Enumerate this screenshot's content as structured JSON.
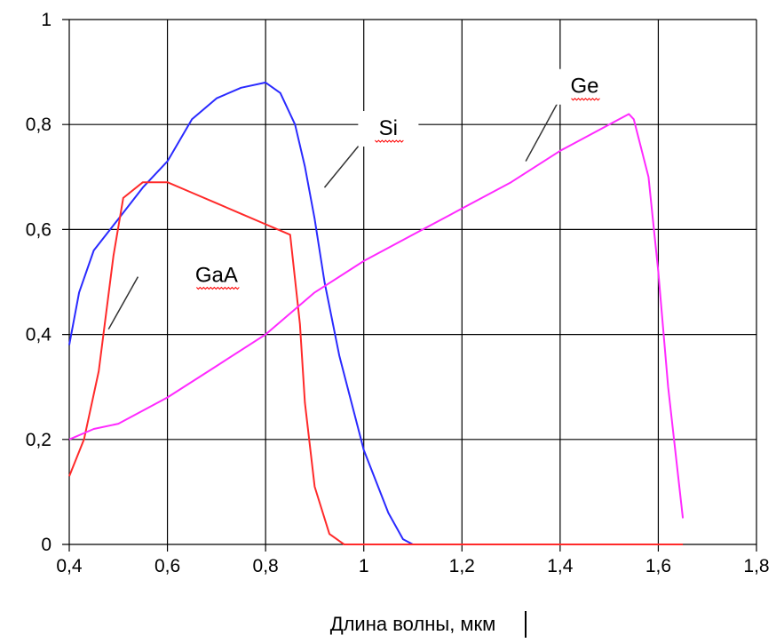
{
  "chart_data": {
    "type": "line",
    "xlabel": "Длина волны, мкм",
    "ylabel": "",
    "xlim": [
      0.4,
      1.8
    ],
    "ylim": [
      0,
      1
    ],
    "grid": true,
    "x_ticks": [
      "0,4",
      "0,6",
      "0,8",
      "1",
      "1,2",
      "1,4",
      "1,6",
      "1,8"
    ],
    "y_ticks": [
      "0",
      "0,2",
      "0,4",
      "0,6",
      "0,8",
      "1"
    ],
    "series": [
      {
        "name": "Si",
        "color": "#2a2aff",
        "x": [
          0.4,
          0.42,
          0.45,
          0.5,
          0.55,
          0.6,
          0.65,
          0.7,
          0.75,
          0.8,
          0.83,
          0.86,
          0.88,
          0.9,
          0.92,
          0.95,
          1.0,
          1.05,
          1.08,
          1.1,
          1.13
        ],
        "y": [
          0.38,
          0.48,
          0.56,
          0.62,
          0.68,
          0.73,
          0.81,
          0.85,
          0.87,
          0.88,
          0.86,
          0.8,
          0.72,
          0.62,
          0.5,
          0.36,
          0.18,
          0.06,
          0.01,
          0.0,
          0.0
        ]
      },
      {
        "name": "GaA",
        "color": "#ff2a2a",
        "x": [
          0.4,
          0.43,
          0.46,
          0.49,
          0.51,
          0.55,
          0.6,
          0.65,
          0.7,
          0.75,
          0.8,
          0.85,
          0.87,
          0.88,
          0.9,
          0.93,
          0.96,
          0.98,
          1.0,
          1.2,
          1.4,
          1.65
        ],
        "y": [
          0.13,
          0.2,
          0.33,
          0.55,
          0.66,
          0.69,
          0.69,
          0.67,
          0.65,
          0.63,
          0.61,
          0.59,
          0.42,
          0.27,
          0.11,
          0.02,
          0.0,
          0.0,
          0.0,
          0.0,
          0.0,
          0.0
        ]
      },
      {
        "name": "Ge",
        "color": "#ff2aff",
        "x": [
          0.4,
          0.45,
          0.5,
          0.6,
          0.7,
          0.8,
          0.9,
          1.0,
          1.1,
          1.2,
          1.3,
          1.4,
          1.5,
          1.54,
          1.55,
          1.58,
          1.6,
          1.62,
          1.65
        ],
        "y": [
          0.2,
          0.22,
          0.23,
          0.28,
          0.34,
          0.4,
          0.48,
          0.54,
          0.59,
          0.64,
          0.69,
          0.75,
          0.8,
          0.82,
          0.81,
          0.7,
          0.52,
          0.3,
          0.05
        ]
      }
    ],
    "labels": [
      {
        "series": "Si",
        "text": "Si",
        "at": [
          1.05,
          0.78
        ],
        "pointer_from": [
          0.99,
          0.76
        ],
        "pointer_to": [
          0.92,
          0.68
        ]
      },
      {
        "series": "GaA",
        "text": "GaA",
        "at": [
          0.7,
          0.5
        ],
        "pointer_from": [
          0.54,
          0.51
        ],
        "pointer_to": [
          0.48,
          0.41
        ]
      },
      {
        "series": "Ge",
        "text": "Ge",
        "at": [
          1.45,
          0.86
        ],
        "pointer_from": [
          1.4,
          0.85
        ],
        "pointer_to": [
          1.33,
          0.73
        ]
      }
    ]
  }
}
